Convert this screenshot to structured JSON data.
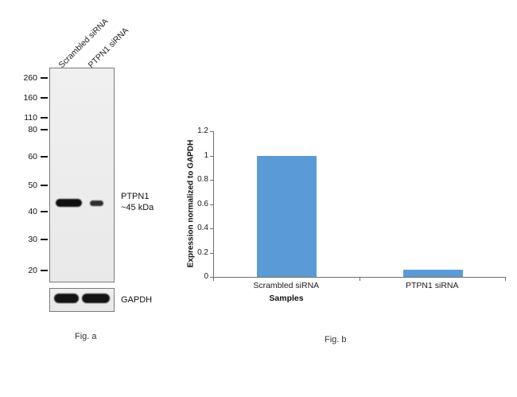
{
  "figure": {
    "fig_a": {
      "caption": "Fig. a",
      "lane_labels": [
        "Scrambled siRNA",
        "PTPN1 siRNA"
      ],
      "mw_markers": [
        "260",
        "160",
        "110",
        "80",
        "60",
        "50",
        "40",
        "30",
        "20"
      ],
      "band_label_line1": "PTPN1",
      "band_label_line2": "~45 kDa",
      "loading_control_label": "GAPDH"
    },
    "fig_b": {
      "caption": "Fig. b"
    }
  },
  "chart_data": {
    "type": "bar",
    "title": "",
    "categories": [
      "Scrambled siRNA",
      "PTPN1 siRNA"
    ],
    "values": [
      1,
      0.06
    ],
    "xlabel": "Samples",
    "ylabel": "Expression  normalized to GAPDH",
    "ylim": [
      0,
      1.2
    ],
    "yticks": [
      0,
      0.2,
      0.4,
      0.6,
      0.8,
      1,
      1.2
    ],
    "bar_color": "#5b9bd5",
    "axis_color": "#6e6e6e",
    "grid": false,
    "legend": "none"
  }
}
